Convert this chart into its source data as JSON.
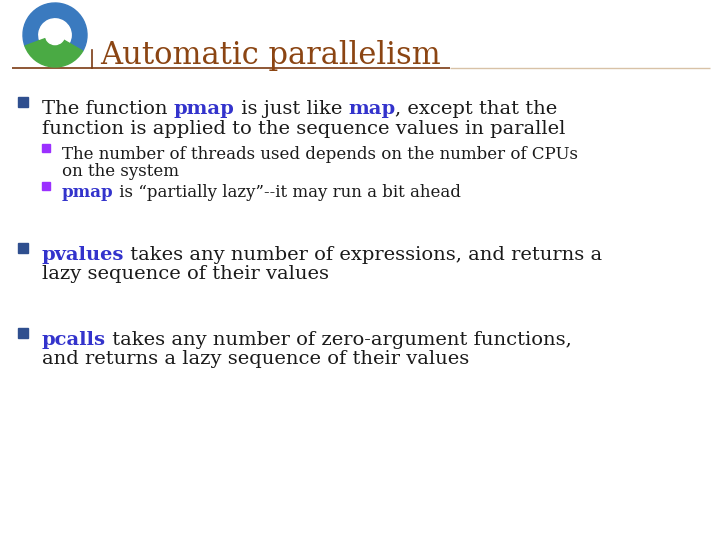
{
  "title": "Automatic parallelism",
  "title_color": "#8B4513",
  "title_fontsize": 22,
  "bg_color": "#FFFFFF",
  "bullet_color": "#2F4F8F",
  "sub_bullet_color": "#9B30FF",
  "body_color": "#1a1a1a",
  "highlight_pmap": "#3333CC",
  "highlight_map": "#3333CC",
  "highlight_pvalues": "#3333CC",
  "highlight_pcalls": "#3333CC",
  "line_color_dark": "#7B3B13",
  "line_color_light": "#C8A882",
  "body_fontsize": 14,
  "sub_fontsize": 12,
  "bullet1_pre": "The function ",
  "bullet1_pmap": "pmap",
  "bullet1_mid": " is just like ",
  "bullet1_map": "map",
  "bullet1_post": ", except that the",
  "bullet1_line2": "function is applied to the sequence values in parallel",
  "sub1_line1": "The number of threads used depends on the number of CPUs",
  "sub1_line2": "on the system",
  "sub2_pmap": "pmap",
  "sub2_rest": " is “partially lazy”--it may run a bit ahead",
  "bullet2_pvalues": "pvalues",
  "bullet2_rest": " takes any number of expressions, and returns a",
  "bullet2_line2": "lazy sequence of their values",
  "bullet3_pcalls": "pcalls",
  "bullet3_rest": " takes any number of zero-argument functions,",
  "bullet3_line2": "and returns a lazy sequence of their values"
}
